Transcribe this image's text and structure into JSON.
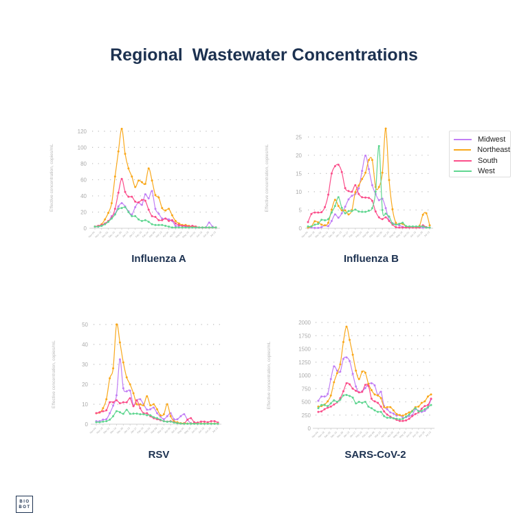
{
  "title": "Regional  Wastewater Concentrations",
  "logo_text": [
    "BIO",
    "BOT"
  ],
  "legend": {
    "placement": "right"
  },
  "series_colors": {
    "Midwest": "#c17ef5",
    "Northeast": "#f9a81b",
    "South": "#fb4d8a",
    "West": "#5fd690"
  },
  "chart_data": [
    {
      "type": "line",
      "title": "Influenza A",
      "ylabel": "Effective concentration, copies/mL",
      "ylim": [
        0,
        125
      ],
      "yticks": [
        0,
        20,
        40,
        60,
        80,
        100,
        120
      ],
      "xticks": [
        "Nov 04",
        "Nov 18",
        "Dec 02",
        "Dec 16",
        "Dec 30",
        "Jan 13",
        "Jan 27",
        "Feb 10",
        "Feb 24",
        "Mar 09",
        "Mar 23",
        "Apr 06",
        "Apr 20",
        "May 04",
        "May 18",
        "Jun 01",
        "Jun 15",
        "Jun 29",
        "Jul 13"
      ],
      "grid": "horizontal dotted",
      "series": [
        {
          "name": "Midwest",
          "values": [
            2,
            2,
            3,
            5,
            8,
            15,
            18,
            27,
            31,
            27,
            21,
            17,
            26,
            32,
            29,
            42,
            37,
            46,
            24,
            18,
            12,
            12,
            11,
            9,
            3,
            3,
            3,
            2,
            2,
            2,
            1,
            1,
            1,
            1,
            7,
            2,
            1
          ]
        },
        {
          "name": "Northeast",
          "values": [
            2,
            3,
            5,
            11,
            19,
            31,
            64,
            95,
            123,
            92,
            74,
            64,
            51,
            59,
            57,
            55,
            74,
            59,
            41,
            38,
            25,
            22,
            24,
            16,
            9,
            6,
            4,
            4,
            3,
            2,
            2,
            1,
            1,
            1,
            1,
            1,
            1
          ]
        },
        {
          "name": "South",
          "values": [
            2,
            3,
            4,
            6,
            9,
            13,
            24,
            44,
            61,
            45,
            39,
            39,
            33,
            32,
            35,
            34,
            23,
            15,
            14,
            10,
            10,
            12,
            9,
            10,
            6,
            4,
            3,
            3,
            2,
            3,
            2,
            1,
            1,
            1,
            1,
            1,
            1
          ]
        },
        {
          "name": "West",
          "values": [
            2,
            2,
            3,
            5,
            8,
            12,
            17,
            24,
            25,
            26,
            20,
            15,
            15,
            11,
            9,
            10,
            8,
            5,
            4,
            4,
            4,
            3,
            2,
            1,
            1,
            1,
            1,
            1,
            1,
            1,
            1,
            1,
            1,
            1,
            1,
            1,
            1
          ]
        }
      ]
    },
    {
      "type": "line",
      "title": "Influenza B",
      "ylabel": "Effective concentration, copies/mL",
      "ylim": [
        0,
        27.5
      ],
      "yticks": [
        0,
        5,
        10,
        15,
        20,
        25
      ],
      "xticks": [
        "Nov 04",
        "Nov 18",
        "Dec 02",
        "Dec 16",
        "Dec 30",
        "Jan 13",
        "Jan 27",
        "Feb 10",
        "Feb 24",
        "Mar 09",
        "Mar 23",
        "Apr 06",
        "Apr 20",
        "May 04",
        "May 18",
        "Jun 01",
        "Jun 15",
        "Jun 29",
        "Jul 13"
      ],
      "grid": "horizontal dotted",
      "series": [
        {
          "name": "Midwest",
          "values": [
            0.2,
            0.2,
            0.1,
            0.1,
            0.3,
            0.8,
            0.6,
            2,
            3.8,
            2.9,
            4.1,
            5.9,
            7.9,
            8.9,
            9.4,
            10.9,
            15.7,
            19.9,
            16.2,
            11.8,
            9.4,
            7.7,
            8.1,
            5.5,
            2.1,
            1.4,
            1.1,
            0.8,
            0.4,
            0.2,
            0.2,
            0.2,
            0.2,
            0.2,
            0.2,
            0.2,
            0.2
          ]
        },
        {
          "name": "Northeast",
          "values": [
            0.2,
            0.5,
            1.9,
            1.6,
            1,
            0.8,
            1.5,
            5.1,
            7.8,
            6.1,
            4.9,
            4.9,
            3.8,
            5,
            9.9,
            11.7,
            13.5,
            15.2,
            18.7,
            18.7,
            11.3,
            11.3,
            15.2,
            27.3,
            13.2,
            5.2,
            1.5,
            1.2,
            1.2,
            0.5,
            0.3,
            0.2,
            0.2,
            0.7,
            3.7,
            4.1,
            0.8
          ]
        },
        {
          "name": "South",
          "values": [
            1.7,
            3.9,
            4.3,
            4.3,
            4.4,
            5.8,
            9.2,
            15,
            17,
            17.4,
            15.4,
            11,
            10.2,
            10,
            11.8,
            9.4,
            8.5,
            8.4,
            8.3,
            7.5,
            4.6,
            3,
            2.5,
            3,
            2,
            1,
            0.3,
            0.2,
            0.2,
            0.2,
            0.2,
            0.2,
            0.2,
            0.2,
            0.8,
            0.3,
            0.2
          ]
        },
        {
          "name": "West",
          "values": [
            0.5,
            0.5,
            1,
            1.2,
            2.3,
            2.2,
            2.5,
            4.3,
            6.1,
            8.5,
            5.6,
            4.1,
            4.7,
            4.7,
            5.1,
            4.6,
            4.5,
            4.5,
            4.8,
            5.5,
            10,
            22.5,
            5,
            4,
            3.2,
            1.3,
            1,
            1.2,
            1.5,
            0.6,
            0.5,
            0.5,
            0.5,
            0.5,
            0.5,
            0.2,
            0.2
          ]
        }
      ]
    },
    {
      "type": "line",
      "title": "RSV",
      "ylabel": "Effective concentration, copies/mL",
      "ylim": [
        0,
        50
      ],
      "yticks": [
        0,
        10,
        20,
        30,
        40,
        50
      ],
      "xticks": [
        "Nov 04",
        "Nov 18",
        "Dec 02",
        "Dec 16",
        "Dec 30",
        "Jan 13",
        "Jan 27",
        "Feb 10",
        "Feb 24",
        "Mar 09",
        "Mar 23",
        "Apr 06",
        "Apr 20",
        "May 04",
        "May 18",
        "Jun 01",
        "Jun 15",
        "Jun 29",
        "Jul 13"
      ],
      "grid": "horizontal dotted",
      "series": [
        {
          "name": "Midwest",
          "values": [
            1.5,
            1.5,
            2.3,
            2.5,
            5.5,
            9.3,
            14.5,
            32.5,
            18,
            16.5,
            16.8,
            9.5,
            12,
            12.5,
            10,
            7.3,
            7.5,
            8.3,
            5.5,
            3.8,
            2.5,
            4,
            5.5,
            2.5,
            2.5,
            4,
            5,
            2.2,
            0.5,
            0.5,
            0.3,
            0.3,
            0.3,
            0.3,
            0.3,
            0.3,
            0.3
          ]
        },
        {
          "name": "Northeast",
          "values": [
            5.5,
            5.8,
            8,
            12.5,
            23,
            28,
            50,
            41,
            31,
            23.5,
            20,
            15.5,
            10,
            10,
            9.5,
            14,
            9.5,
            10,
            7.5,
            4.5,
            5,
            10,
            4,
            1.5,
            1,
            0.5,
            0.5,
            0.3,
            0.3,
            0.3,
            0.3,
            0.3,
            0.3,
            0.3,
            0.3,
            0.3,
            0.3
          ]
        },
        {
          "name": "South",
          "values": [
            5.5,
            6,
            6.5,
            7,
            11,
            11,
            12,
            10.5,
            11,
            11,
            13,
            9,
            12,
            8,
            5.5,
            5.5,
            4,
            3,
            2.5,
            2,
            1.5,
            1.3,
            1.5,
            1,
            0.5,
            0.3,
            0.3,
            2.3,
            3,
            1,
            0.8,
            1.3,
            1.3,
            1,
            1.5,
            1.5,
            0.8
          ]
        },
        {
          "name": "West",
          "values": [
            1,
            1,
            1.3,
            1.5,
            2.3,
            4,
            6.5,
            6,
            5.2,
            7.2,
            5.2,
            5.3,
            5.3,
            5,
            5,
            4.5,
            4.5,
            3.5,
            3,
            2.3,
            1.5,
            1.2,
            1.3,
            0.8,
            0.5,
            0.3,
            0.2,
            0.2,
            0.2,
            0.2,
            0.2,
            0.2,
            0.2,
            0.2,
            0.2,
            0.2,
            0.2
          ]
        }
      ]
    },
    {
      "type": "line",
      "title": "SARS-CoV-2",
      "ylabel": "Effective concentration, copies/mL",
      "ylim": [
        0,
        2000
      ],
      "yticks": [
        0,
        250,
        500,
        750,
        1000,
        1250,
        1500,
        1750,
        2000
      ],
      "xticks": [
        "Nov 04",
        "Nov 18",
        "Dec 02",
        "Dec 16",
        "Dec 30",
        "Jan 13",
        "Jan 27",
        "Feb 10",
        "Feb 24",
        "Mar 09",
        "Mar 23",
        "Apr 06",
        "Apr 20",
        "May 04",
        "May 18",
        "Jun 01",
        "Jun 15",
        "Jun 29",
        "Jul 13"
      ],
      "grid": "horizontal dotted",
      "series": [
        {
          "name": "Midwest",
          "values": [
            520,
            600,
            600,
            650,
            930,
            1170,
            1090,
            1070,
            1310,
            1340,
            1270,
            1030,
            790,
            680,
            700,
            760,
            840,
            850,
            810,
            630,
            690,
            420,
            360,
            300,
            280,
            240,
            250,
            200,
            210,
            230,
            250,
            360,
            330,
            310,
            330,
            390,
            550
          ]
        },
        {
          "name": "Northeast",
          "values": [
            410,
            420,
            450,
            510,
            620,
            870,
            1040,
            1210,
            1630,
            1920,
            1670,
            1390,
            1090,
            930,
            1070,
            1050,
            840,
            720,
            640,
            620,
            570,
            400,
            400,
            400,
            340,
            270,
            250,
            240,
            270,
            300,
            330,
            400,
            410,
            480,
            510,
            600,
            640
          ]
        },
        {
          "name": "South",
          "values": [
            310,
            320,
            360,
            390,
            410,
            450,
            490,
            570,
            700,
            850,
            830,
            750,
            710,
            680,
            690,
            820,
            800,
            560,
            510,
            480,
            410,
            320,
            260,
            220,
            190,
            160,
            140,
            140,
            150,
            180,
            230,
            270,
            300,
            370,
            420,
            440,
            560
          ]
        },
        {
          "name": "West",
          "values": [
            380,
            440,
            440,
            420,
            470,
            530,
            500,
            540,
            620,
            630,
            610,
            580,
            470,
            500,
            480,
            500,
            410,
            380,
            340,
            310,
            310,
            230,
            200,
            200,
            190,
            180,
            170,
            180,
            220,
            260,
            320,
            380,
            320,
            330,
            360,
            400,
            440
          ]
        }
      ]
    }
  ]
}
